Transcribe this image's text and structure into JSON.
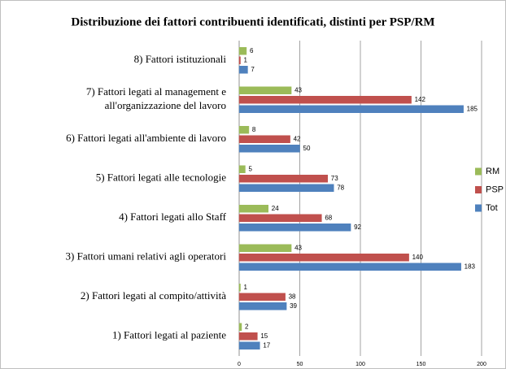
{
  "chart_data": {
    "type": "hbar",
    "title": "Distribuzione dei fattori contribuenti identificati, distinti per PSP/RM",
    "categories": [
      "1) Fattori legati al paziente",
      "2) Fattori legati al compito/attività",
      "3) Fattori umani relativi agli operatori",
      "4) Fattori legati allo Staff",
      "5) Fattori legati alle tecnologie",
      "6) Fattori legati all'ambiente di lavoro",
      [
        "7) Fattori legati al management e",
        "all'organizzazione del lavoro"
      ],
      "8) Fattori istituzionali"
    ],
    "series": [
      {
        "name": "RM",
        "color": "#9bbb59",
        "values": [
          2,
          1,
          43,
          24,
          5,
          8,
          43,
          6
        ]
      },
      {
        "name": "PSP",
        "color": "#c0504d",
        "values": [
          15,
          38,
          140,
          68,
          73,
          42,
          142,
          1
        ]
      },
      {
        "name": "Tot",
        "color": "#4f81bd",
        "values": [
          17,
          39,
          183,
          92,
          78,
          50,
          185,
          7
        ]
      }
    ],
    "xlim": [
      0,
      200
    ],
    "xticks": [
      0,
      50,
      100,
      150,
      200
    ],
    "grid": true,
    "legend": "right"
  }
}
